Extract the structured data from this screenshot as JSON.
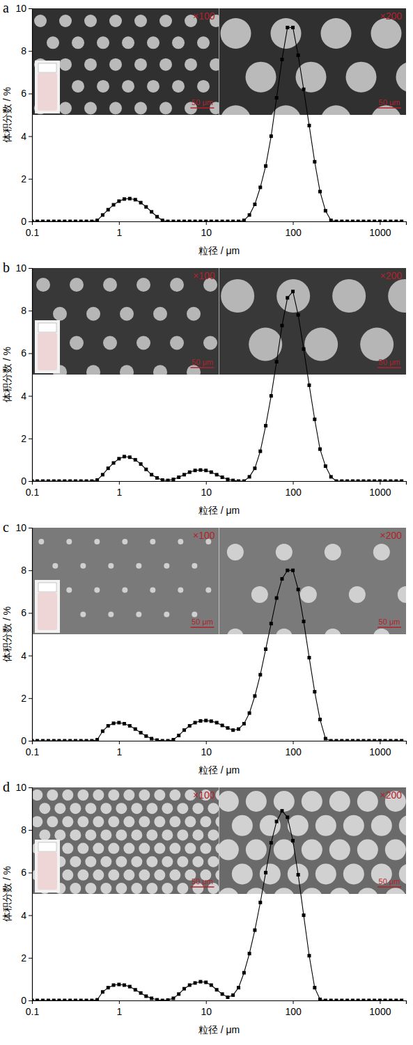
{
  "chart_data": [
    {
      "type": "line",
      "title": "a",
      "x_label": "粒径 / μm",
      "y_label": "体积分数 / %",
      "log": "x",
      "xlim": [
        0.1,
        2000
      ],
      "ylim": [
        0,
        10
      ],
      "xticks": [
        0.1,
        1,
        10,
        100,
        1000
      ],
      "yticks": [
        0,
        2,
        4,
        6,
        8,
        10
      ],
      "annotations": [
        "×100",
        "×200",
        "50 μm",
        "50 μm"
      ],
      "x": [
        0.1,
        0.115,
        0.133,
        0.154,
        0.178,
        0.205,
        0.237,
        0.274,
        0.316,
        0.365,
        0.422,
        0.487,
        0.562,
        0.649,
        0.75,
        0.866,
        1,
        1.15,
        1.33,
        1.54,
        1.78,
        2.05,
        2.37,
        2.74,
        3.16,
        3.65,
        4.22,
        4.87,
        5.62,
        6.49,
        7.5,
        8.66,
        10,
        11.5,
        13.3,
        15.4,
        17.8,
        20.5,
        23.7,
        27.4,
        31.6,
        36.5,
        42.2,
        48.7,
        56.2,
        64.9,
        75,
        86.6,
        100,
        115,
        133,
        154,
        178,
        205,
        237,
        274,
        316,
        365,
        422,
        487,
        562,
        649,
        750,
        866,
        1000,
        1150,
        1330,
        1540,
        1780
      ],
      "series": [
        {
          "color": "#000000",
          "marker": "square",
          "line_style": "solid",
          "values": [
            0,
            0,
            0,
            0,
            0,
            0,
            0,
            0,
            0,
            0,
            0,
            0,
            0.05,
            0.3,
            0.55,
            0.78,
            0.95,
            1.05,
            1.07,
            1.02,
            0.88,
            0.68,
            0.45,
            0.22,
            0.05,
            0,
            0,
            0,
            0,
            0,
            0,
            0,
            0,
            0,
            0,
            0,
            0,
            0,
            0,
            0.05,
            0.3,
            0.8,
            1.6,
            2.6,
            4.0,
            5.8,
            7.6,
            9.1,
            9.1,
            7.8,
            6.2,
            4.5,
            2.8,
            1.4,
            0.5,
            0.05,
            0,
            0,
            0,
            0,
            0,
            0,
            0,
            0,
            0,
            0,
            0,
            0,
            0
          ]
        }
      ]
    },
    {
      "type": "line",
      "title": "b",
      "x_label": "粒径 / μm",
      "y_label": "体积分数 / %",
      "log": "x",
      "xlim": [
        0.1,
        2000
      ],
      "ylim": [
        0,
        10
      ],
      "xticks": [
        0.1,
        1,
        10,
        100,
        1000
      ],
      "yticks": [
        0,
        2,
        4,
        6,
        8,
        10
      ],
      "annotations": [
        "×100",
        "×200",
        "50 μm",
        "50 μm"
      ],
      "x": [
        0.1,
        0.115,
        0.133,
        0.154,
        0.178,
        0.205,
        0.237,
        0.274,
        0.316,
        0.365,
        0.422,
        0.487,
        0.562,
        0.649,
        0.75,
        0.866,
        1,
        1.15,
        1.33,
        1.54,
        1.78,
        2.05,
        2.37,
        2.74,
        3.16,
        3.65,
        4.22,
        4.87,
        5.62,
        6.49,
        7.5,
        8.66,
        10,
        11.5,
        13.3,
        15.4,
        17.8,
        20.5,
        23.7,
        27.4,
        31.6,
        36.5,
        42.2,
        48.7,
        56.2,
        64.9,
        75,
        86.6,
        100,
        115,
        133,
        154,
        178,
        205,
        237,
        274,
        316,
        365,
        422,
        487,
        562,
        649,
        750,
        866,
        1000,
        1150,
        1330,
        1540,
        1780
      ],
      "series": [
        {
          "color": "#000000",
          "marker": "square",
          "line_style": "solid",
          "values": [
            0,
            0,
            0,
            0,
            0,
            0,
            0,
            0,
            0,
            0,
            0,
            0,
            0.05,
            0.3,
            0.6,
            0.85,
            1.05,
            1.15,
            1.12,
            1.0,
            0.8,
            0.55,
            0.3,
            0.15,
            0.05,
            0.03,
            0.08,
            0.18,
            0.3,
            0.42,
            0.5,
            0.52,
            0.5,
            0.42,
            0.3,
            0.18,
            0.08,
            0.03,
            0,
            0,
            0.2,
            0.6,
            1.4,
            2.6,
            4.0,
            5.6,
            7.3,
            8.6,
            8.9,
            7.8,
            6.2,
            4.5,
            2.9,
            1.5,
            0.7,
            0.2,
            0,
            0,
            0,
            0,
            0,
            0,
            0,
            0,
            0,
            0,
            0,
            0,
            0
          ]
        }
      ]
    },
    {
      "type": "line",
      "title": "c",
      "x_label": "粒径 / μm",
      "y_label": "体积分数 / %",
      "log": "x",
      "xlim": [
        0.1,
        2000
      ],
      "ylim": [
        0,
        10
      ],
      "xticks": [
        0.1,
        1,
        10,
        100,
        1000
      ],
      "yticks": [
        0,
        2,
        4,
        6,
        8,
        10
      ],
      "annotations": [
        "×100",
        "×200",
        "50 μm",
        "50 μm"
      ],
      "x": [
        0.1,
        0.115,
        0.133,
        0.154,
        0.178,
        0.205,
        0.237,
        0.274,
        0.316,
        0.365,
        0.422,
        0.487,
        0.562,
        0.649,
        0.75,
        0.866,
        1,
        1.15,
        1.33,
        1.54,
        1.78,
        2.05,
        2.37,
        2.74,
        3.16,
        3.65,
        4.22,
        4.87,
        5.62,
        6.49,
        7.5,
        8.66,
        10,
        11.5,
        13.3,
        15.4,
        17.8,
        20.5,
        23.7,
        27.4,
        31.6,
        36.5,
        42.2,
        48.7,
        56.2,
        64.9,
        75,
        86.6,
        100,
        115,
        133,
        154,
        178,
        205,
        237,
        274,
        316,
        365,
        422,
        487,
        562,
        649,
        750,
        866,
        1000,
        1150,
        1330,
        1540,
        1780
      ],
      "series": [
        {
          "color": "#000000",
          "marker": "square",
          "line_style": "solid",
          "values": [
            0,
            0,
            0,
            0,
            0,
            0,
            0,
            0,
            0,
            0,
            0,
            0,
            0.05,
            0.45,
            0.7,
            0.82,
            0.85,
            0.8,
            0.7,
            0.55,
            0.38,
            0.22,
            0.1,
            0.03,
            0,
            0,
            0.05,
            0.25,
            0.5,
            0.7,
            0.85,
            0.93,
            0.95,
            0.92,
            0.85,
            0.72,
            0.6,
            0.5,
            0.55,
            0.8,
            1.3,
            2.1,
            3.1,
            4.3,
            5.5,
            6.7,
            7.6,
            8.0,
            8.0,
            7.1,
            5.6,
            3.9,
            2.3,
            1.0,
            0.1,
            0,
            0,
            0,
            0,
            0,
            0,
            0,
            0,
            0,
            0,
            0,
            0,
            0,
            0
          ]
        }
      ]
    },
    {
      "type": "line",
      "title": "d",
      "x_label": "粒径 / μm",
      "y_label": "体积分数 / %",
      "log": "x",
      "xlim": [
        0.1,
        2000
      ],
      "ylim": [
        0,
        10
      ],
      "xticks": [
        0.1,
        1,
        10,
        100,
        1000
      ],
      "yticks": [
        0,
        2,
        4,
        6,
        8,
        10
      ],
      "annotations": [
        "×100",
        "×200",
        "50 μm",
        "50 μm"
      ],
      "x": [
        0.1,
        0.115,
        0.133,
        0.154,
        0.178,
        0.205,
        0.237,
        0.274,
        0.316,
        0.365,
        0.422,
        0.487,
        0.562,
        0.649,
        0.75,
        0.866,
        1,
        1.15,
        1.33,
        1.54,
        1.78,
        2.05,
        2.37,
        2.74,
        3.16,
        3.65,
        4.22,
        4.87,
        5.62,
        6.49,
        7.5,
        8.66,
        10,
        11.5,
        13.3,
        15.4,
        17.8,
        20.5,
        23.7,
        27.4,
        31.6,
        36.5,
        42.2,
        48.7,
        56.2,
        64.9,
        75,
        86.6,
        100,
        115,
        133,
        154,
        178,
        205,
        237,
        274,
        316,
        365,
        422,
        487,
        562,
        649,
        750,
        866,
        1000,
        1150,
        1330,
        1540,
        1780
      ],
      "series": [
        {
          "color": "#000000",
          "marker": "square",
          "line_style": "solid",
          "values": [
            0,
            0,
            0,
            0,
            0,
            0,
            0,
            0,
            0,
            0,
            0,
            0,
            0.03,
            0.4,
            0.6,
            0.72,
            0.75,
            0.72,
            0.65,
            0.5,
            0.35,
            0.2,
            0.1,
            0.03,
            0,
            0.02,
            0.1,
            0.3,
            0.55,
            0.72,
            0.82,
            0.88,
            0.85,
            0.72,
            0.5,
            0.3,
            0.15,
            0.25,
            0.6,
            1.3,
            2.2,
            3.3,
            4.6,
            6.0,
            7.4,
            8.4,
            8.9,
            8.6,
            7.5,
            5.9,
            4.0,
            2.1,
            0.6,
            0.05,
            0,
            0,
            0,
            0,
            0,
            0,
            0,
            0,
            0,
            0,
            0,
            0,
            0,
            0,
            0
          ]
        }
      ]
    }
  ]
}
